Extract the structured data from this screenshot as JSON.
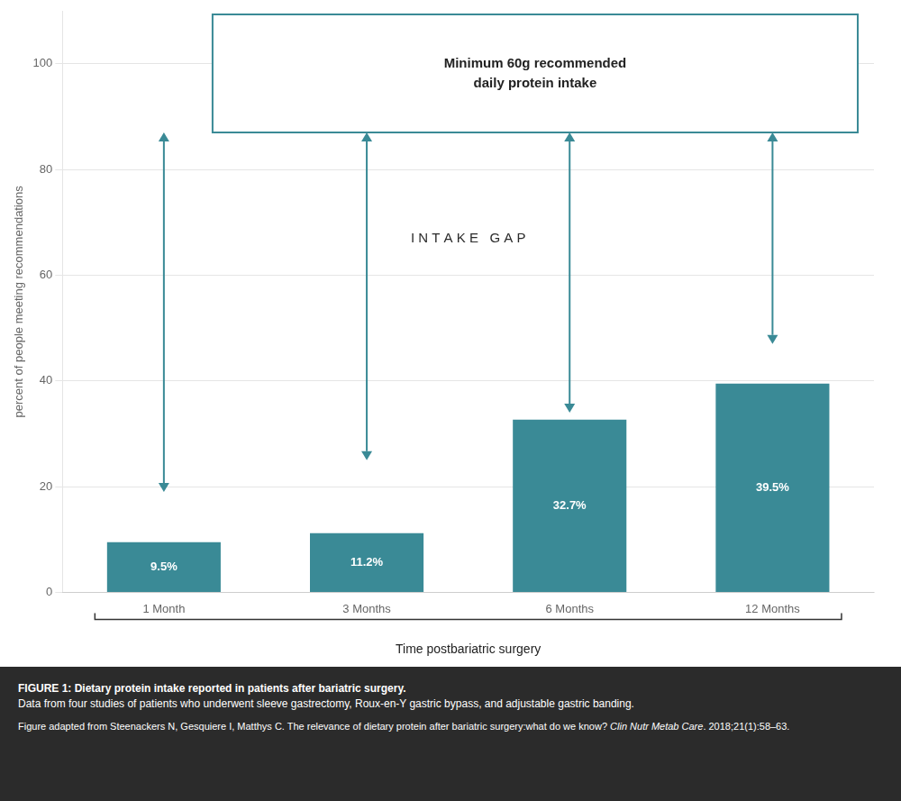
{
  "chart_data": {
    "type": "bar",
    "categories": [
      "1 Month",
      "3 Months",
      "6 Months",
      "12 Months"
    ],
    "values": [
      9.5,
      11.2,
      32.7,
      39.5
    ],
    "value_labels": [
      "9.5%",
      "11.2%",
      "32.7%",
      "39.5%"
    ],
    "data_labels": true,
    "color": "#3a8a96",
    "ylim": [
      0,
      110
    ],
    "yticks": [
      0,
      20,
      40,
      60,
      80,
      100
    ],
    "grid": true,
    "ylabel": "percent of people meeting recommendations",
    "xlabel": "Time postbariatric surgery",
    "annotations": {
      "intake_gap": "I N T A K E   G A P",
      "box": [
        "Minimum 60g recommended",
        "daily protein intake"
      ]
    },
    "arrows": {
      "color": "#3a8a96",
      "to": 87,
      "from": [
        19,
        25,
        34,
        47
      ]
    },
    "caption": {
      "title": "FIGURE 1: Dietary protein intake reported in patients after bariatric surgery.",
      "text": "Data from four studies of patients who underwent sleeve gastrectomy, Roux-en-Y gastric bypass, and adjustable gastric banding.",
      "source": [
        "Figure adapted from Steenackers N, Gesquiere I, Matthys C. The relevance of dietary protein after bariatric surgery:what do we know? ",
        "Clin Nutr Metab Care",
        ". 2018;21(1):58–63."
      ]
    }
  }
}
